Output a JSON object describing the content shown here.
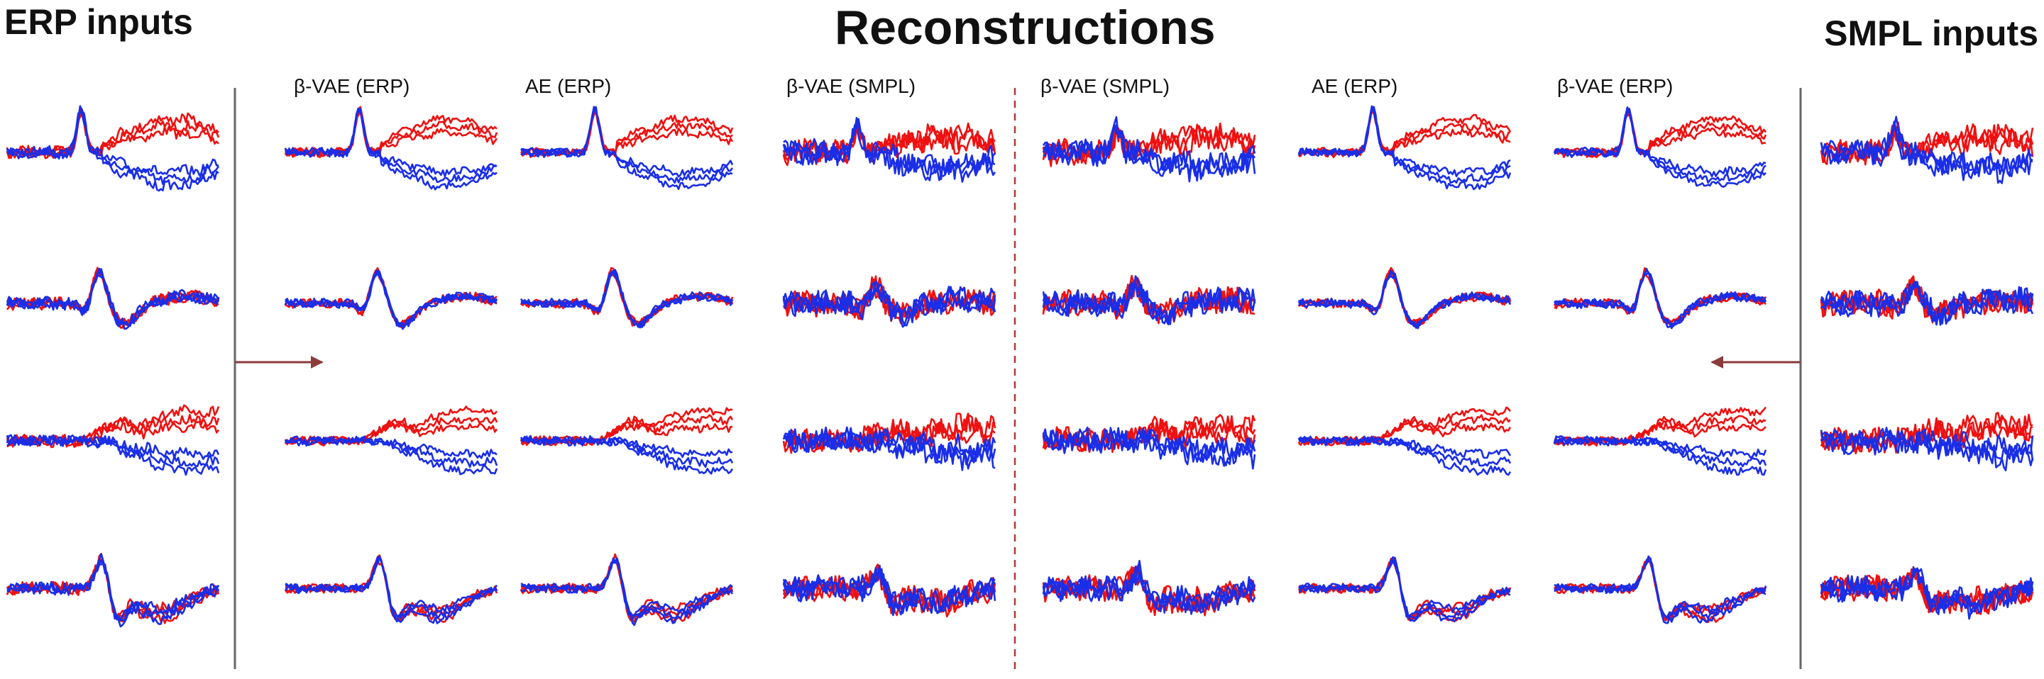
{
  "header": {
    "left_title": "ERP inputs",
    "center_title": "Reconstructions",
    "right_title": "SMPL inputs"
  },
  "columns": [
    {
      "id": "erp-inputs",
      "label": "",
      "group": "input-erp"
    },
    {
      "id": "recon-1",
      "label": "β-VAE (ERP)",
      "group": "recon-erp"
    },
    {
      "id": "recon-2",
      "label": "AE (ERP)",
      "group": "recon-erp"
    },
    {
      "id": "recon-3",
      "label": "β-VAE (SMPL)",
      "group": "recon-erp"
    },
    {
      "id": "recon-4",
      "label": "β-VAE (SMPL)",
      "group": "recon-smpl"
    },
    {
      "id": "recon-5",
      "label": "AE (ERP)",
      "group": "recon-smpl"
    },
    {
      "id": "recon-6",
      "label": "β-VAE (ERP)",
      "group": "recon-smpl"
    },
    {
      "id": "smpl-inputs",
      "label": "",
      "group": "input-smpl"
    }
  ],
  "rows": 4,
  "colors": {
    "condition_a": "#ee1111",
    "condition_b": "#1a2ee8",
    "divider": "#666666",
    "dashed_divider": "#b03a3a",
    "arrow": "#8c3a3a"
  }
}
